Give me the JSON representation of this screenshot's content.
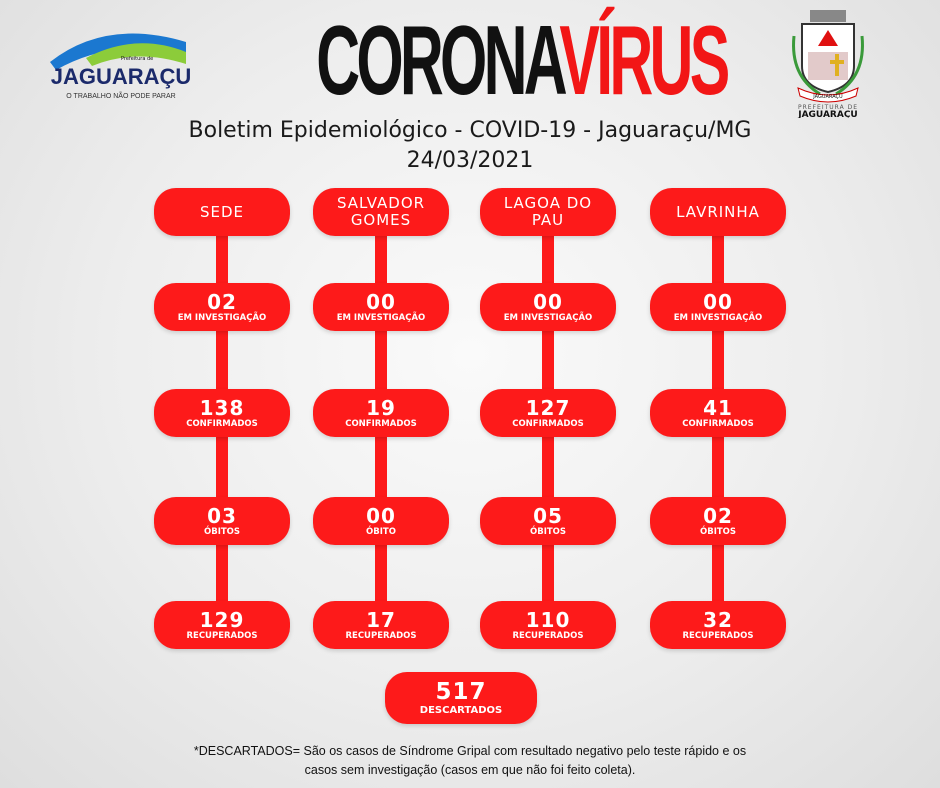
{
  "header": {
    "title_black": "CORONA",
    "title_red": "VÍRUS",
    "subtitle": "Boletim Epidemiológico - COVID-19 - Jaguaraçu/MG",
    "date": "24/03/2021"
  },
  "logo_left": {
    "small": "Prefeitura de",
    "name": "JAGUARAÇU",
    "slogan": "O TRABALHO NÃO PODE PARAR"
  },
  "logo_right": {
    "line1": "PREFEITURA DE",
    "line2": "JAGUARAÇU",
    "ribbon": "JAGUARAÇU"
  },
  "colors": {
    "accent": "#fd1a1a",
    "title_black": "#111111"
  },
  "columns": [
    {
      "name": "SEDE",
      "investigacao": "02",
      "confirmados": "138",
      "obitos": "03",
      "obitos_label": "ÓBITOS",
      "recuperados": "129"
    },
    {
      "name": "SALVADOR GOMES",
      "investigacao": "00",
      "confirmados": "19",
      "obitos": "00",
      "obitos_label": "ÓBITO",
      "recuperados": "17"
    },
    {
      "name": "LAGOA DO PAU",
      "investigacao": "00",
      "confirmados": "127",
      "obitos": "05",
      "obitos_label": "ÓBITOS",
      "recuperados": "110"
    },
    {
      "name": "LAVRINHA",
      "investigacao": "00",
      "confirmados": "41",
      "obitos": "02",
      "obitos_label": "ÓBITOS",
      "recuperados": "32"
    }
  ],
  "labels": {
    "investigacao": "EM INVESTIGAÇÃO",
    "confirmados": "CONFIRMADOS",
    "recuperados": "RECUPERADOS"
  },
  "descartados": {
    "value": "517",
    "label": "DESCARTADOS"
  },
  "footnote": {
    "line1": "*DESCARTADOS= São os casos de Síndrome Gripal com resultado negativo pelo teste rápido e os",
    "line2": "casos sem investigação (casos em que não foi feito coleta)."
  }
}
